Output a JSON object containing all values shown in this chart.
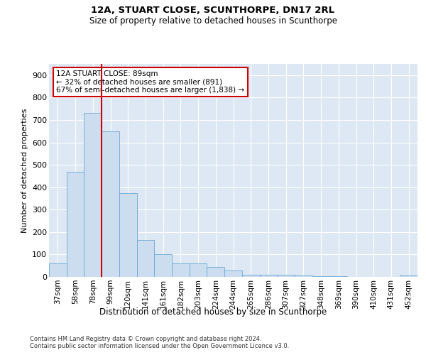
{
  "title1": "12A, STUART CLOSE, SCUNTHORPE, DN17 2RL",
  "title2": "Size of property relative to detached houses in Scunthorpe",
  "xlabel": "Distribution of detached houses by size in Scunthorpe",
  "ylabel": "Number of detached properties",
  "footer1": "Contains HM Land Registry data © Crown copyright and database right 2024.",
  "footer2": "Contains public sector information licensed under the Open Government Licence v3.0.",
  "annotation_title": "12A STUART CLOSE: 89sqm",
  "annotation_line1": "← 32% of detached houses are smaller (891)",
  "annotation_line2": "67% of semi-detached houses are larger (1,838) →",
  "bar_color": "#ccddf0",
  "bar_edge_color": "#6aaad4",
  "vline_color": "#cc0000",
  "annotation_box_color": "#cc0000",
  "categories": [
    "37sqm",
    "58sqm",
    "78sqm",
    "99sqm",
    "120sqm",
    "141sqm",
    "161sqm",
    "182sqm",
    "203sqm",
    "224sqm",
    "244sqm",
    "265sqm",
    "286sqm",
    "307sqm",
    "327sqm",
    "348sqm",
    "369sqm",
    "390sqm",
    "410sqm",
    "431sqm",
    "452sqm"
  ],
  "values": [
    60,
    470,
    730,
    650,
    375,
    165,
    100,
    60,
    60,
    45,
    30,
    10,
    10,
    8,
    5,
    4,
    2,
    1,
    1,
    1,
    5
  ],
  "ylim": [
    0,
    950
  ],
  "yticks": [
    0,
    100,
    200,
    300,
    400,
    500,
    600,
    700,
    800,
    900
  ],
  "vline_x": 2.5,
  "bg_color": "#dde8f4",
  "grid_color": "#ffffff",
  "fig_width": 6.0,
  "fig_height": 5.0,
  "dpi": 100
}
